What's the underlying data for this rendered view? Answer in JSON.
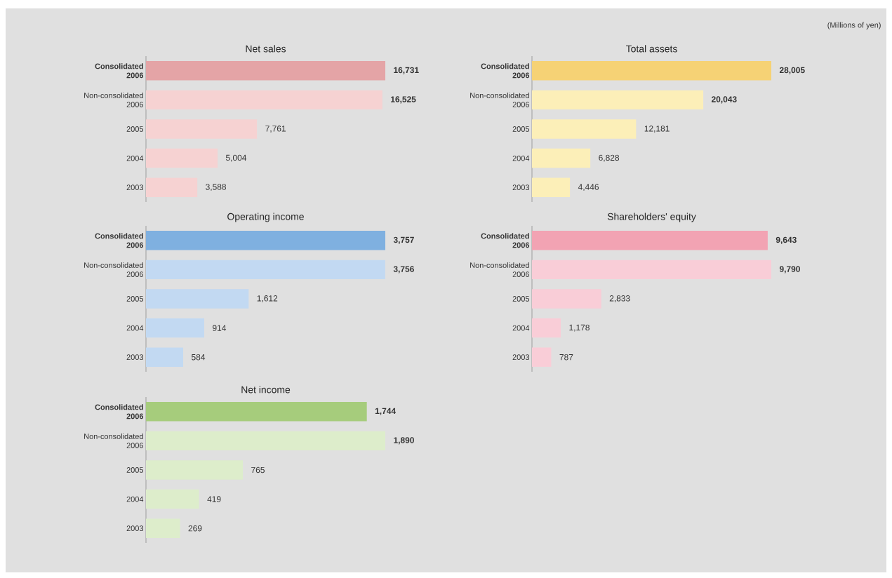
{
  "chart_data": [
    {
      "type": "bar",
      "orientation": "horizontal",
      "title": "Net sales",
      "categories": [
        "Consolidated 2006",
        "Non-consolidated 2006",
        "2005",
        "2004",
        "2003"
      ],
      "values": [
        16731,
        16525,
        7761,
        5004,
        3588
      ],
      "value_labels": [
        "16,731",
        "16,525",
        "7,761",
        "5,004",
        "3,588"
      ],
      "colors": [
        "#e4a4a6",
        "#f6d2d2",
        "#f6d2d2",
        "#f6d2d2",
        "#f6d2d2"
      ]
    },
    {
      "type": "bar",
      "orientation": "horizontal",
      "title": "Total assets",
      "categories": [
        "Consolidated 2006",
        "Non-consolidated 2006",
        "2005",
        "2004",
        "2003"
      ],
      "values": [
        28005,
        20043,
        12181,
        6828,
        4446
      ],
      "value_labels": [
        "28,005",
        "20,043",
        "12,181",
        "6,828",
        "4,446"
      ],
      "colors": [
        "#f6d275",
        "#fcefb8",
        "#fcefb8",
        "#fcefb8",
        "#fcefb8"
      ],
      "annotations": [
        "(Millions of yen)"
      ]
    },
    {
      "type": "bar",
      "orientation": "horizontal",
      "title": "Operating income",
      "categories": [
        "Consolidated 2006",
        "Non-consolidated 2006",
        "2005",
        "2004",
        "2003"
      ],
      "values": [
        3757,
        3756,
        1612,
        914,
        584
      ],
      "value_labels": [
        "3,757",
        "3,756",
        "1,612",
        "914",
        "584"
      ],
      "colors": [
        "#7fb0e0",
        "#c2d9f2",
        "#c2d9f2",
        "#c2d9f2",
        "#c2d9f2"
      ]
    },
    {
      "type": "bar",
      "orientation": "horizontal",
      "title": "Shareholders' equity",
      "categories": [
        "Consolidated 2006",
        "Non-consolidated 2006",
        "2005",
        "2004",
        "2003"
      ],
      "values": [
        9643,
        9790,
        2833,
        1178,
        787
      ],
      "value_labels": [
        "9,643",
        "9,790",
        "2,833",
        "1,178",
        "787"
      ],
      "colors": [
        "#f2a3b3",
        "#f9cdd7",
        "#f9cdd7",
        "#f9cdd7",
        "#f9cdd7"
      ]
    },
    {
      "type": "bar",
      "orientation": "horizontal",
      "title": "Net income",
      "categories": [
        "Consolidated 2006",
        "Non-consolidated 2006",
        "2005",
        "2004",
        "2003"
      ],
      "values": [
        1744,
        1890,
        765,
        419,
        269
      ],
      "value_labels": [
        "1,744",
        "1,890",
        "765",
        "419",
        "269"
      ],
      "colors": [
        "#a6cc7c",
        "#ddedcb",
        "#ddedcb",
        "#ddedcb",
        "#ddedcb"
      ]
    }
  ]
}
